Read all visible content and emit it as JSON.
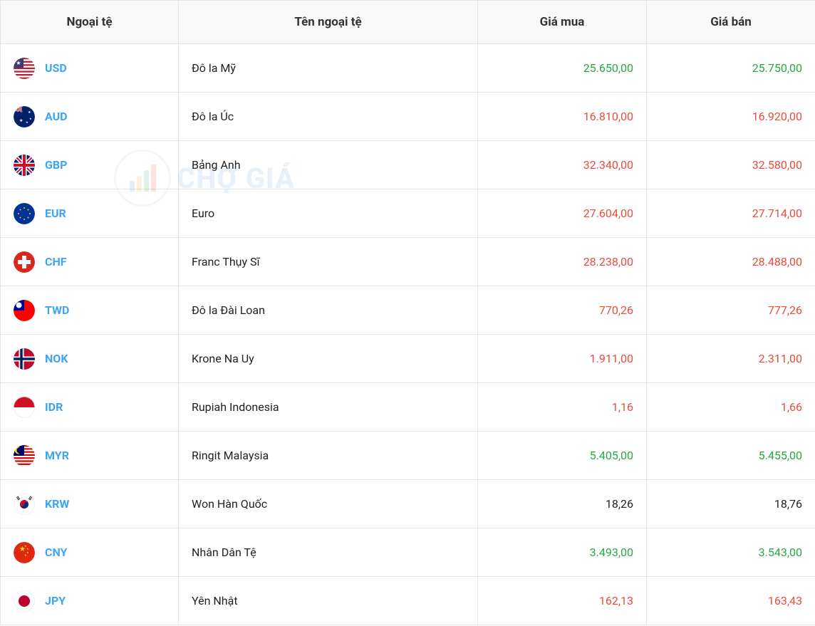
{
  "table": {
    "headers": {
      "currency": "Ngoại tệ",
      "name": "Tên ngoại tệ",
      "buy": "Giá mua",
      "sell": "Giá bán"
    },
    "rows": [
      {
        "code": "USD",
        "name": "Đô la Mỹ",
        "buy": "25.650,00",
        "sell": "25.750,00",
        "buy_trend": "up",
        "sell_trend": "up",
        "flag": "usd"
      },
      {
        "code": "AUD",
        "name": "Đô la Úc",
        "buy": "16.810,00",
        "sell": "16.920,00",
        "buy_trend": "down",
        "sell_trend": "down",
        "flag": "aud"
      },
      {
        "code": "GBP",
        "name": "Bảng Anh",
        "buy": "32.340,00",
        "sell": "32.580,00",
        "buy_trend": "down",
        "sell_trend": "down",
        "flag": "gbp"
      },
      {
        "code": "EUR",
        "name": "Euro",
        "buy": "27.604,00",
        "sell": "27.714,00",
        "buy_trend": "down",
        "sell_trend": "down",
        "flag": "eur"
      },
      {
        "code": "CHF",
        "name": "Franc Thụy Sĩ",
        "buy": "28.238,00",
        "sell": "28.488,00",
        "buy_trend": "down",
        "sell_trend": "down",
        "flag": "chf"
      },
      {
        "code": "TWD",
        "name": "Đô la Đài Loan",
        "buy": "770,26",
        "sell": "777,26",
        "buy_trend": "down",
        "sell_trend": "down",
        "flag": "twd"
      },
      {
        "code": "NOK",
        "name": "Krone Na Uy",
        "buy": "1.911,00",
        "sell": "2.311,00",
        "buy_trend": "down",
        "sell_trend": "down",
        "flag": "nok"
      },
      {
        "code": "IDR",
        "name": "Rupiah Indonesia",
        "buy": "1,16",
        "sell": "1,66",
        "buy_trend": "down",
        "sell_trend": "down",
        "flag": "idr"
      },
      {
        "code": "MYR",
        "name": "Ringit Malaysia",
        "buy": "5.405,00",
        "sell": "5.455,00",
        "buy_trend": "up",
        "sell_trend": "up",
        "flag": "myr"
      },
      {
        "code": "KRW",
        "name": "Won Hàn Quốc",
        "buy": "18,26",
        "sell": "18,76",
        "buy_trend": "neutral",
        "sell_trend": "neutral",
        "flag": "krw"
      },
      {
        "code": "CNY",
        "name": "Nhân Dân Tệ",
        "buy": "3.493,00",
        "sell": "3.543,00",
        "buy_trend": "up",
        "sell_trend": "up",
        "flag": "cny"
      },
      {
        "code": "JPY",
        "name": "Yên Nhật",
        "buy": "162,13",
        "sell": "163,43",
        "buy_trend": "down",
        "sell_trend": "down",
        "flag": "jpy"
      }
    ]
  },
  "watermark": {
    "text": "CHỢ GIÁ"
  },
  "colors": {
    "code_link": "#3da5f4",
    "price_up": "#28a745",
    "price_down": "#e74c3c",
    "price_neutral": "#222222",
    "border": "#e5e5e5",
    "header_bg": "#f8f8f8"
  },
  "flags": {
    "usd": {
      "bg": "#b22234",
      "overlay": "usd"
    },
    "aud": {
      "bg": "#012169",
      "overlay": "aud"
    },
    "gbp": {
      "bg": "#012169",
      "overlay": "gbp"
    },
    "eur": {
      "bg": "#003399",
      "overlay": "eur"
    },
    "chf": {
      "bg": "#da291c",
      "overlay": "chf"
    },
    "twd": {
      "bg": "#fe0000",
      "overlay": "twd"
    },
    "nok": {
      "bg": "#ba0c2f",
      "overlay": "nok"
    },
    "idr": {
      "bg": "#ffffff",
      "overlay": "idr"
    },
    "myr": {
      "bg": "#cc0001",
      "overlay": "myr"
    },
    "krw": {
      "bg": "#ffffff",
      "overlay": "krw"
    },
    "cny": {
      "bg": "#de2910",
      "overlay": "cny"
    },
    "jpy": {
      "bg": "#ffffff",
      "overlay": "jpy"
    }
  }
}
